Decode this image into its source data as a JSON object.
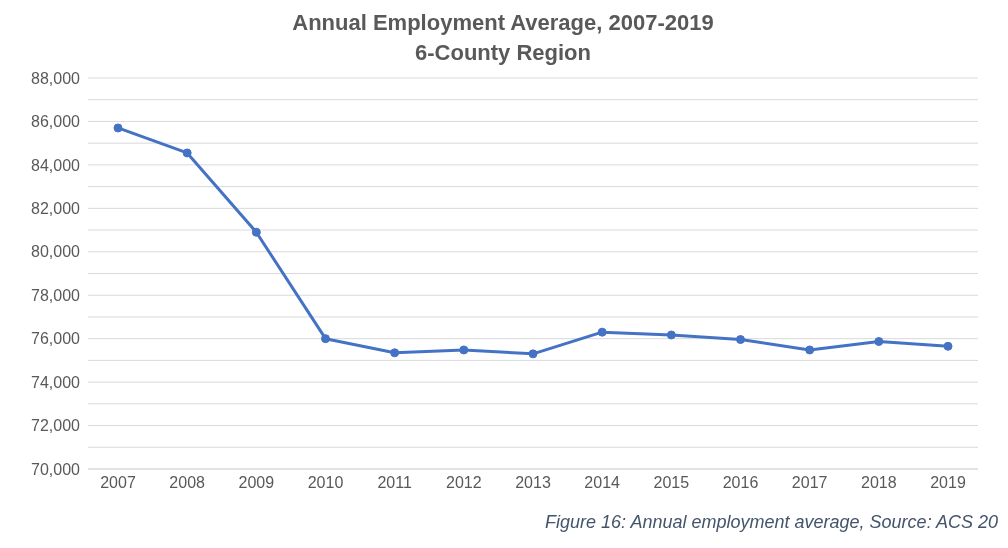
{
  "chart_data": {
    "type": "line",
    "title": "Annual Employment Average, 2007-2019",
    "subtitle": "6-County Region",
    "categories": [
      "2007",
      "2008",
      "2009",
      "2010",
      "2011",
      "2012",
      "2013",
      "2014",
      "2015",
      "2016",
      "2017",
      "2018",
      "2019"
    ],
    "series": [
      {
        "color": "#4472c4",
        "values": [
          85700,
          84550,
          80900,
          76000,
          75350,
          75480,
          75300,
          76300,
          76170,
          75960,
          75480,
          75870,
          75650
        ]
      }
    ],
    "ylim": [
      70000,
      88000
    ],
    "yticks": [
      {
        "value": 70000,
        "label": "70,000"
      },
      {
        "value": 71000,
        "label": null
      },
      {
        "value": 72000,
        "label": "72,000"
      },
      {
        "value": 73000,
        "label": null
      },
      {
        "value": 74000,
        "label": "74,000"
      },
      {
        "value": 75000,
        "label": null
      },
      {
        "value": 76000,
        "label": "76,000"
      },
      {
        "value": 77000,
        "label": null
      },
      {
        "value": 78000,
        "label": "78,000"
      },
      {
        "value": 79000,
        "label": null
      },
      {
        "value": 80000,
        "label": "80,000"
      },
      {
        "value": 81000,
        "label": null
      },
      {
        "value": 82000,
        "label": "82,000"
      },
      {
        "value": 83000,
        "label": null
      },
      {
        "value": 84000,
        "label": "84,000"
      },
      {
        "value": 85000,
        "label": null
      },
      {
        "value": 86000,
        "label": "86,000"
      },
      {
        "value": 87000,
        "label": null
      },
      {
        "value": 88000,
        "label": "88,000"
      }
    ],
    "grid": "y",
    "marker": "circle",
    "line_style": "solid",
    "annotations": [
      "Figure 16: Annual employment average, Source: ACS 20"
    ]
  }
}
